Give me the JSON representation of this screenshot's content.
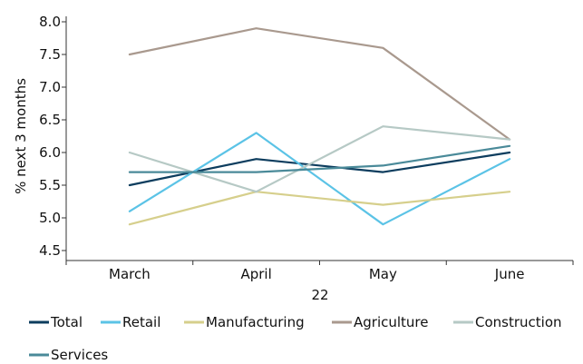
{
  "chart_data": {
    "type": "line",
    "title": "",
    "xlabel": "22",
    "ylabel": "% next 3 months",
    "categories": [
      "March",
      "April",
      "May",
      "June"
    ],
    "ylim": [
      4.5,
      8.0
    ],
    "y_ticks": [
      "8.0",
      "7.5",
      "7.0",
      "6.5",
      "6.0",
      "5.5",
      "5.0",
      "4.5"
    ],
    "grid": false,
    "legend_position": "bottom",
    "series": [
      {
        "name": "Total",
        "color": "#0d3d5e",
        "values": [
          5.5,
          5.9,
          5.7,
          6.0
        ]
      },
      {
        "name": "Retail",
        "color": "#5bc3e6",
        "values": [
          5.1,
          6.3,
          4.9,
          5.9
        ]
      },
      {
        "name": "Manufacturing",
        "color": "#d6cf8c",
        "values": [
          4.9,
          5.4,
          5.2,
          5.4
        ]
      },
      {
        "name": "Agriculture",
        "color": "#a9998e",
        "values": [
          7.5,
          7.9,
          7.6,
          6.2
        ]
      },
      {
        "name": "Construction",
        "color": "#b6c9c5",
        "values": [
          6.0,
          5.4,
          6.4,
          6.2
        ]
      },
      {
        "name": "Services",
        "color": "#4a8a99",
        "values": [
          5.7,
          5.7,
          5.8,
          6.1
        ]
      }
    ]
  }
}
